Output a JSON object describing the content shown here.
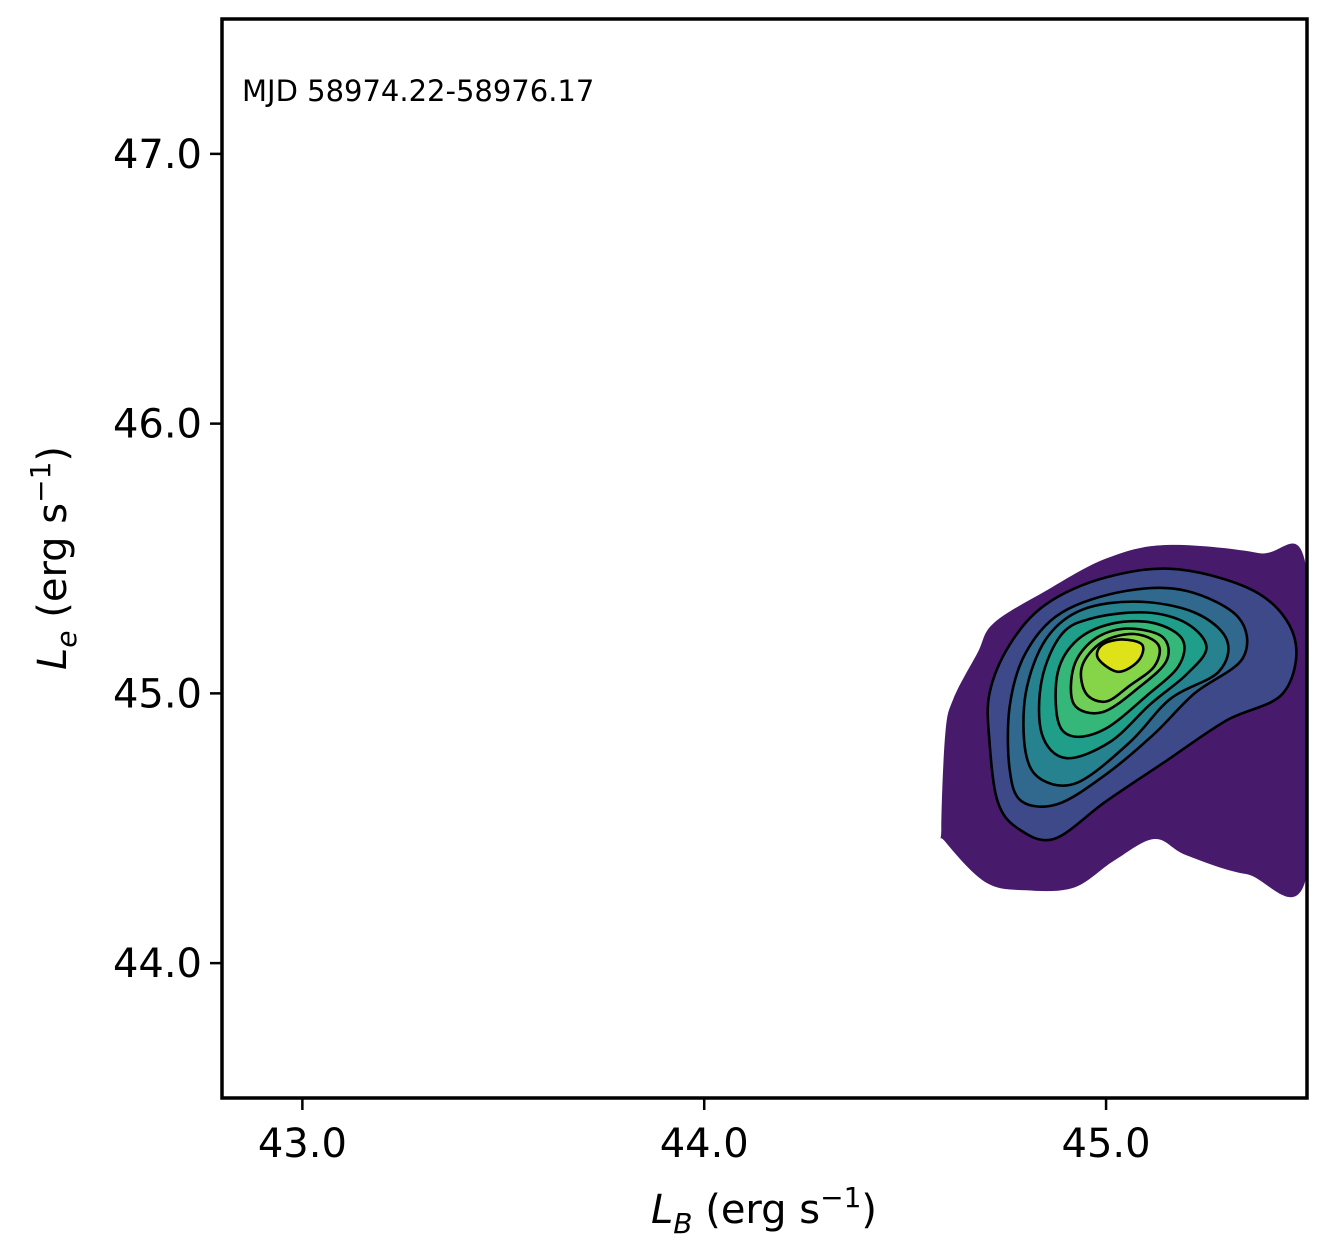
{
  "chart_data": {
    "type": "contour",
    "annotation": "MJD 58974.22-58976.17",
    "xlabel": {
      "symbol": "L",
      "sub": "B",
      "unit_prefix": " (erg s",
      "exp": "−1",
      "unit_suffix": ")"
    },
    "ylabel": {
      "symbol": "L",
      "sub": "e",
      "unit_prefix": " (erg s",
      "exp": "−1",
      "unit_suffix": ")"
    },
    "xlim": [
      42.8,
      45.5
    ],
    "ylim": [
      43.5,
      47.5
    ],
    "xticks": [
      43.0,
      44.0,
      45.0
    ],
    "xtick_labels": [
      "43.0",
      "44.0",
      "45.0"
    ],
    "yticks": [
      44.0,
      45.0,
      46.0,
      47.0
    ],
    "ytick_labels": [
      "44.0",
      "45.0",
      "46.0",
      "47.0"
    ],
    "grid": false,
    "colormap": "viridis",
    "density_peak": {
      "x": 45.03,
      "y": 45.15
    },
    "levels": [
      {
        "color": "#481a6c",
        "outline": false,
        "points": [
          [
            44.59,
            44.5
          ],
          [
            44.6,
            44.85
          ],
          [
            44.62,
            44.98
          ],
          [
            44.68,
            45.15
          ],
          [
            44.72,
            45.26
          ],
          [
            44.85,
            45.38
          ],
          [
            45.0,
            45.5
          ],
          [
            45.15,
            45.55
          ],
          [
            45.38,
            45.52
          ],
          [
            45.5,
            45.45
          ],
          [
            45.5,
            44.33
          ],
          [
            45.35,
            44.33
          ],
          [
            45.2,
            44.4
          ],
          [
            45.12,
            44.46
          ],
          [
            45.02,
            44.38
          ],
          [
            44.92,
            44.28
          ],
          [
            44.8,
            44.27
          ],
          [
            44.7,
            44.3
          ],
          [
            44.6,
            44.45
          ]
        ]
      },
      {
        "color": "#3e4989",
        "outline": true,
        "points": [
          [
            44.73,
            44.6
          ],
          [
            44.71,
            44.82
          ],
          [
            44.71,
            45.0
          ],
          [
            44.76,
            45.18
          ],
          [
            44.85,
            45.33
          ],
          [
            45.0,
            45.43
          ],
          [
            45.18,
            45.46
          ],
          [
            45.38,
            45.37
          ],
          [
            45.47,
            45.2
          ],
          [
            45.44,
            45.0
          ],
          [
            45.3,
            44.9
          ],
          [
            45.15,
            44.75
          ],
          [
            45.0,
            44.6
          ],
          [
            44.87,
            44.46
          ],
          [
            44.78,
            44.5
          ]
        ]
      },
      {
        "color": "#31688e",
        "outline": true,
        "points": [
          [
            44.76,
            44.72
          ],
          [
            44.76,
            44.95
          ],
          [
            44.8,
            45.15
          ],
          [
            44.89,
            45.3
          ],
          [
            45.05,
            45.38
          ],
          [
            45.2,
            45.38
          ],
          [
            45.33,
            45.28
          ],
          [
            45.34,
            45.13
          ],
          [
            45.22,
            45.0
          ],
          [
            45.12,
            44.85
          ],
          [
            45.0,
            44.7
          ],
          [
            44.88,
            44.59
          ],
          [
            44.79,
            44.6
          ]
        ]
      },
      {
        "color": "#26828e",
        "outline": true,
        "points": [
          [
            44.8,
            44.78
          ],
          [
            44.8,
            45.0
          ],
          [
            44.85,
            45.2
          ],
          [
            44.94,
            45.31
          ],
          [
            45.08,
            45.34
          ],
          [
            45.22,
            45.3
          ],
          [
            45.3,
            45.2
          ],
          [
            45.28,
            45.08
          ],
          [
            45.16,
            44.98
          ],
          [
            45.06,
            44.82
          ],
          [
            44.93,
            44.67
          ],
          [
            44.84,
            44.68
          ]
        ]
      },
      {
        "color": "#1f9e89",
        "outline": true,
        "points": [
          [
            44.84,
            44.85
          ],
          [
            44.84,
            45.05
          ],
          [
            44.89,
            45.22
          ],
          [
            44.97,
            45.28
          ],
          [
            45.1,
            45.3
          ],
          [
            45.2,
            45.26
          ],
          [
            45.25,
            45.17
          ],
          [
            45.2,
            45.07
          ],
          [
            45.11,
            44.96
          ],
          [
            45.01,
            44.82
          ],
          [
            44.9,
            44.76
          ]
        ]
      },
      {
        "color": "#35b779",
        "outline": true,
        "points": [
          [
            44.88,
            44.9
          ],
          [
            44.88,
            45.08
          ],
          [
            44.93,
            45.2
          ],
          [
            45.02,
            45.26
          ],
          [
            45.12,
            45.26
          ],
          [
            45.19,
            45.2
          ],
          [
            45.18,
            45.1
          ],
          [
            45.1,
            44.99
          ],
          [
            45.0,
            44.87
          ],
          [
            44.92,
            44.84
          ]
        ]
      },
      {
        "color": "#6ece58",
        "outline": true,
        "points": [
          [
            44.92,
            44.96
          ],
          [
            44.92,
            45.1
          ],
          [
            44.97,
            45.2
          ],
          [
            45.05,
            45.24
          ],
          [
            45.14,
            45.21
          ],
          [
            45.15,
            45.12
          ],
          [
            45.08,
            45.02
          ],
          [
            44.99,
            44.93
          ]
        ]
      },
      {
        "color": "#86d549",
        "outline": true,
        "points": [
          [
            44.95,
            45.0
          ],
          [
            44.94,
            45.1
          ],
          [
            44.99,
            45.19
          ],
          [
            45.07,
            45.22
          ],
          [
            45.13,
            45.18
          ],
          [
            45.12,
            45.1
          ],
          [
            45.06,
            45.03
          ],
          [
            45.0,
            44.97
          ]
        ]
      },
      {
        "color": "#dde318",
        "outline": true,
        "points": [
          [
            44.98,
            45.13
          ],
          [
            44.99,
            45.18
          ],
          [
            45.04,
            45.2
          ],
          [
            45.09,
            45.18
          ],
          [
            45.08,
            45.12
          ],
          [
            45.03,
            45.08
          ]
        ]
      }
    ]
  }
}
